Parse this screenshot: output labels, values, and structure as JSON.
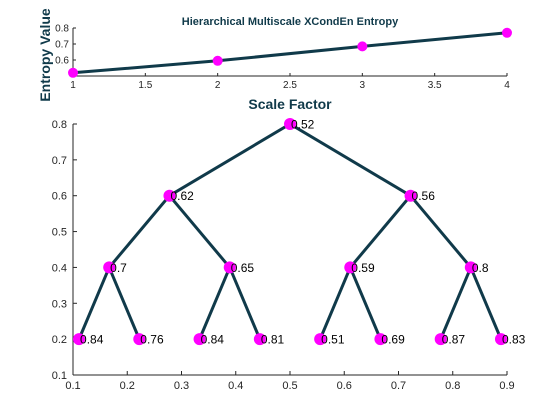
{
  "colors": {
    "line": "#103a4a",
    "marker": "#ff00ff",
    "axis": "#262626",
    "grid_tick": "#262626",
    "background": "#ffffff"
  },
  "chart_data": [
    {
      "type": "line",
      "title": "Hierarchical Multiscale XCondEn Entropy",
      "xlabel": "Scale Factor",
      "ylabel": "Entropy Value",
      "xlim": [
        1,
        4
      ],
      "ylim": [
        0.5,
        0.8
      ],
      "xticks": [
        "1",
        "1.5",
        "2",
        "2.5",
        "3",
        "3.5",
        "4"
      ],
      "yticks": [
        "0.6",
        "0.7",
        "0.8"
      ],
      "x": [
        1,
        2,
        3,
        4
      ],
      "y": [
        0.52,
        0.595,
        0.685,
        0.77
      ],
      "grid": false
    },
    {
      "type": "scatter",
      "title": "",
      "xlabel": "",
      "ylabel": "",
      "xlim": [
        0.1,
        0.9
      ],
      "ylim": [
        0.1,
        0.8
      ],
      "xticks": [
        "0.1",
        "0.2",
        "0.3",
        "0.4",
        "0.5",
        "0.6",
        "0.7",
        "0.8",
        "0.9"
      ],
      "yticks": [
        "0.1",
        "0.2",
        "0.3",
        "0.4",
        "0.5",
        "0.6",
        "0.7",
        "0.8"
      ],
      "grid": false,
      "nodes": [
        {
          "x": 0.5,
          "y": 0.8,
          "label": "0.52"
        },
        {
          "x": 0.2778,
          "y": 0.6,
          "label": "0.62"
        },
        {
          "x": 0.7222,
          "y": 0.6,
          "label": "0.56"
        },
        {
          "x": 0.1667,
          "y": 0.4,
          "label": "0.7"
        },
        {
          "x": 0.3889,
          "y": 0.4,
          "label": "0.65"
        },
        {
          "x": 0.6111,
          "y": 0.4,
          "label": "0.59"
        },
        {
          "x": 0.8333,
          "y": 0.4,
          "label": "0.8"
        },
        {
          "x": 0.1111,
          "y": 0.2,
          "label": "0.84"
        },
        {
          "x": 0.2222,
          "y": 0.2,
          "label": "0.76"
        },
        {
          "x": 0.3333,
          "y": 0.2,
          "label": "0.84"
        },
        {
          "x": 0.4444,
          "y": 0.2,
          "label": "0.81"
        },
        {
          "x": 0.5556,
          "y": 0.2,
          "label": "0.51"
        },
        {
          "x": 0.6667,
          "y": 0.2,
          "label": "0.69"
        },
        {
          "x": 0.7778,
          "y": 0.2,
          "label": "0.87"
        },
        {
          "x": 0.8889,
          "y": 0.2,
          "label": "0.83"
        }
      ],
      "edges": [
        [
          0,
          1
        ],
        [
          0,
          2
        ],
        [
          1,
          3
        ],
        [
          1,
          4
        ],
        [
          2,
          5
        ],
        [
          2,
          6
        ],
        [
          3,
          7
        ],
        [
          3,
          8
        ],
        [
          4,
          9
        ],
        [
          4,
          10
        ],
        [
          5,
          11
        ],
        [
          5,
          12
        ],
        [
          6,
          13
        ],
        [
          6,
          14
        ]
      ]
    }
  ]
}
